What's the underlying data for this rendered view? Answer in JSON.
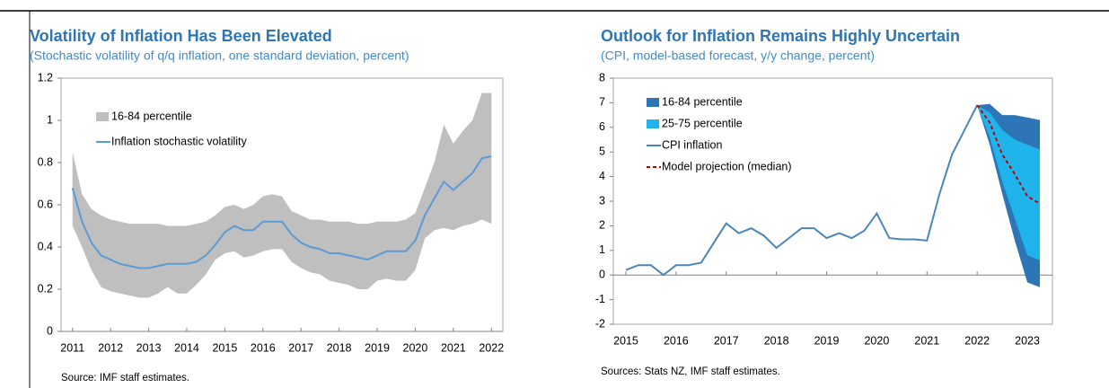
{
  "chart_data": [
    {
      "type": "line",
      "title": "Volatility of Inflation Has Been Elevated",
      "subtitle": "(Stochastic volatility of q/q inflation, one standard deviation, percent)",
      "source": "Source: IMF staff estimates.",
      "legend": "upper left",
      "grid": false,
      "xlim": [
        2010.7,
        2022.3
      ],
      "xticks": [
        2011,
        2012,
        2013,
        2014,
        2015,
        2016,
        2017,
        2018,
        2019,
        2020,
        2021,
        2022
      ],
      "ylim": [
        0,
        1.2
      ],
      "yticks": [
        0,
        0.2,
        0.4,
        0.6,
        0.8,
        1,
        1.2
      ],
      "x": [
        2011,
        2011.25,
        2011.5,
        2011.75,
        2012,
        2012.25,
        2012.5,
        2012.75,
        2013,
        2013.25,
        2013.5,
        2013.75,
        2014,
        2014.25,
        2014.5,
        2014.75,
        2015,
        2015.25,
        2015.5,
        2015.75,
        2016,
        2016.25,
        2016.5,
        2016.75,
        2017,
        2017.25,
        2017.5,
        2017.75,
        2018,
        2018.25,
        2018.5,
        2018.75,
        2019,
        2019.25,
        2019.5,
        2019.75,
        2020,
        2020.25,
        2020.5,
        2020.75,
        2021,
        2021.25,
        2021.5,
        2021.75,
        2022
      ],
      "series": [
        {
          "name": "16-84 percentile",
          "type": "band",
          "color": "#bfbfbf",
          "upper": [
            0.85,
            0.65,
            0.58,
            0.55,
            0.53,
            0.52,
            0.51,
            0.51,
            0.51,
            0.51,
            0.5,
            0.5,
            0.5,
            0.51,
            0.52,
            0.55,
            0.59,
            0.6,
            0.58,
            0.6,
            0.64,
            0.65,
            0.64,
            0.57,
            0.55,
            0.53,
            0.53,
            0.52,
            0.52,
            0.52,
            0.51,
            0.51,
            0.52,
            0.52,
            0.52,
            0.53,
            0.56,
            0.68,
            0.8,
            0.98,
            0.89,
            0.95,
            1.0,
            1.13,
            1.13
          ],
          "lower": [
            0.5,
            0.4,
            0.29,
            0.21,
            0.19,
            0.18,
            0.17,
            0.16,
            0.16,
            0.18,
            0.21,
            0.18,
            0.18,
            0.22,
            0.27,
            0.34,
            0.37,
            0.38,
            0.35,
            0.36,
            0.38,
            0.39,
            0.39,
            0.33,
            0.3,
            0.28,
            0.27,
            0.24,
            0.23,
            0.22,
            0.2,
            0.2,
            0.24,
            0.25,
            0.24,
            0.24,
            0.29,
            0.44,
            0.48,
            0.49,
            0.48,
            0.5,
            0.51,
            0.53,
            0.51
          ]
        },
        {
          "name": "Inflation stochastic volatility",
          "type": "line",
          "color": "#5b9bd5",
          "values": [
            0.68,
            0.52,
            0.42,
            0.36,
            0.34,
            0.32,
            0.31,
            0.3,
            0.3,
            0.31,
            0.32,
            0.32,
            0.32,
            0.33,
            0.36,
            0.41,
            0.47,
            0.5,
            0.48,
            0.48,
            0.52,
            0.52,
            0.52,
            0.46,
            0.42,
            0.4,
            0.39,
            0.37,
            0.37,
            0.36,
            0.35,
            0.34,
            0.36,
            0.38,
            0.38,
            0.38,
            0.43,
            0.55,
            0.63,
            0.71,
            0.67,
            0.71,
            0.75,
            0.82,
            0.83
          ]
        }
      ]
    },
    {
      "type": "line",
      "title": "Outlook for Inflation Remains Highly Uncertain",
      "subtitle": "(CPI, model-based forecast, y/y change, percent)",
      "source": "Sources: Stats NZ, IMF staff estimates.",
      "legend": "upper left",
      "grid": false,
      "xlim": [
        2014.75,
        2023.5
      ],
      "xticks": [
        2015,
        2016,
        2017,
        2018,
        2019,
        2020,
        2021,
        2022,
        2023
      ],
      "ylim": [
        -2,
        8
      ],
      "yticks": [
        -2,
        -1,
        0,
        1,
        2,
        3,
        4,
        5,
        6,
        7,
        8
      ],
      "series": [
        {
          "name": "16-84 percentile",
          "type": "band",
          "color": "#2e75b6",
          "x": [
            2022,
            2022.25,
            2022.5,
            2022.75,
            2023,
            2023.25
          ],
          "upper": [
            6.9,
            6.95,
            6.5,
            6.5,
            6.4,
            6.3
          ],
          "lower": [
            6.9,
            5.3,
            3.3,
            1.4,
            -0.3,
            -0.5
          ]
        },
        {
          "name": "25-75 percentile",
          "type": "band",
          "color": "#1fb4ec",
          "x": [
            2022,
            2022.25,
            2022.5,
            2022.75,
            2023,
            2023.25
          ],
          "upper": [
            6.9,
            6.6,
            5.9,
            5.5,
            5.3,
            5.1
          ],
          "lower": [
            6.9,
            5.6,
            3.8,
            2.3,
            0.8,
            0.6
          ]
        },
        {
          "name": "CPI inflation",
          "type": "line",
          "color": "#4a86b8",
          "x": [
            2015,
            2015.25,
            2015.5,
            2015.75,
            2016,
            2016.25,
            2016.5,
            2016.75,
            2017,
            2017.25,
            2017.5,
            2017.75,
            2018,
            2018.25,
            2018.5,
            2018.75,
            2019,
            2019.25,
            2019.5,
            2019.75,
            2020,
            2020.25,
            2020.5,
            2020.75,
            2021,
            2021.25,
            2021.5,
            2021.75,
            2022
          ],
          "values": [
            0.2,
            0.4,
            0.4,
            0,
            0.4,
            0.4,
            0.5,
            1.3,
            2.1,
            1.7,
            1.9,
            1.6,
            1.1,
            1.5,
            1.9,
            1.9,
            1.5,
            1.7,
            1.5,
            1.8,
            2.5,
            1.5,
            1.45,
            1.45,
            1.4,
            3.3,
            4.9,
            5.9,
            6.9
          ]
        },
        {
          "name": "Model projection (median)",
          "type": "line",
          "dash": true,
          "color": "#c00000",
          "x": [
            2022,
            2022.25,
            2022.5,
            2022.75,
            2023,
            2023.25
          ],
          "values": [
            6.9,
            6.2,
            4.9,
            4.1,
            3.2,
            2.9
          ]
        }
      ]
    }
  ]
}
